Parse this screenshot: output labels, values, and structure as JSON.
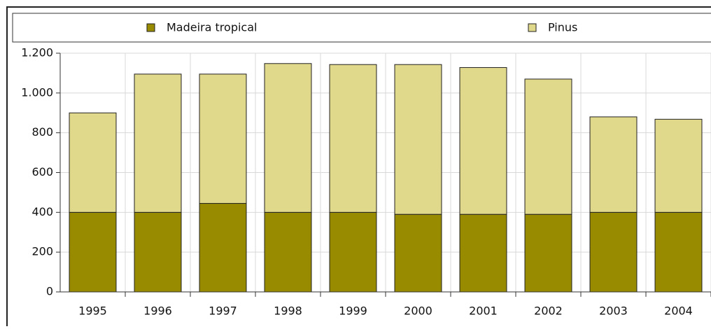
{
  "chart_data": {
    "type": "bar",
    "stacked": true,
    "categories": [
      "1995",
      "1996",
      "1997",
      "1998",
      "1999",
      "2000",
      "2001",
      "2002",
      "2003",
      "2004"
    ],
    "series": [
      {
        "name": "Madeira tropical",
        "color": "#988b00",
        "values": [
          400,
          400,
          445,
          400,
          400,
          390,
          390,
          390,
          400,
          400
        ]
      },
      {
        "name": "Pinus",
        "color": "#e0d88a",
        "values": [
          500,
          695,
          650,
          748,
          743,
          753,
          738,
          680,
          480,
          468
        ]
      }
    ],
    "ylim": [
      0,
      1200
    ],
    "yticks": [
      0,
      200,
      400,
      600,
      800,
      {
        "value": 1000,
        "label": "1.000"
      },
      {
        "value": 1200,
        "label": "1.200"
      }
    ],
    "grid": true
  }
}
